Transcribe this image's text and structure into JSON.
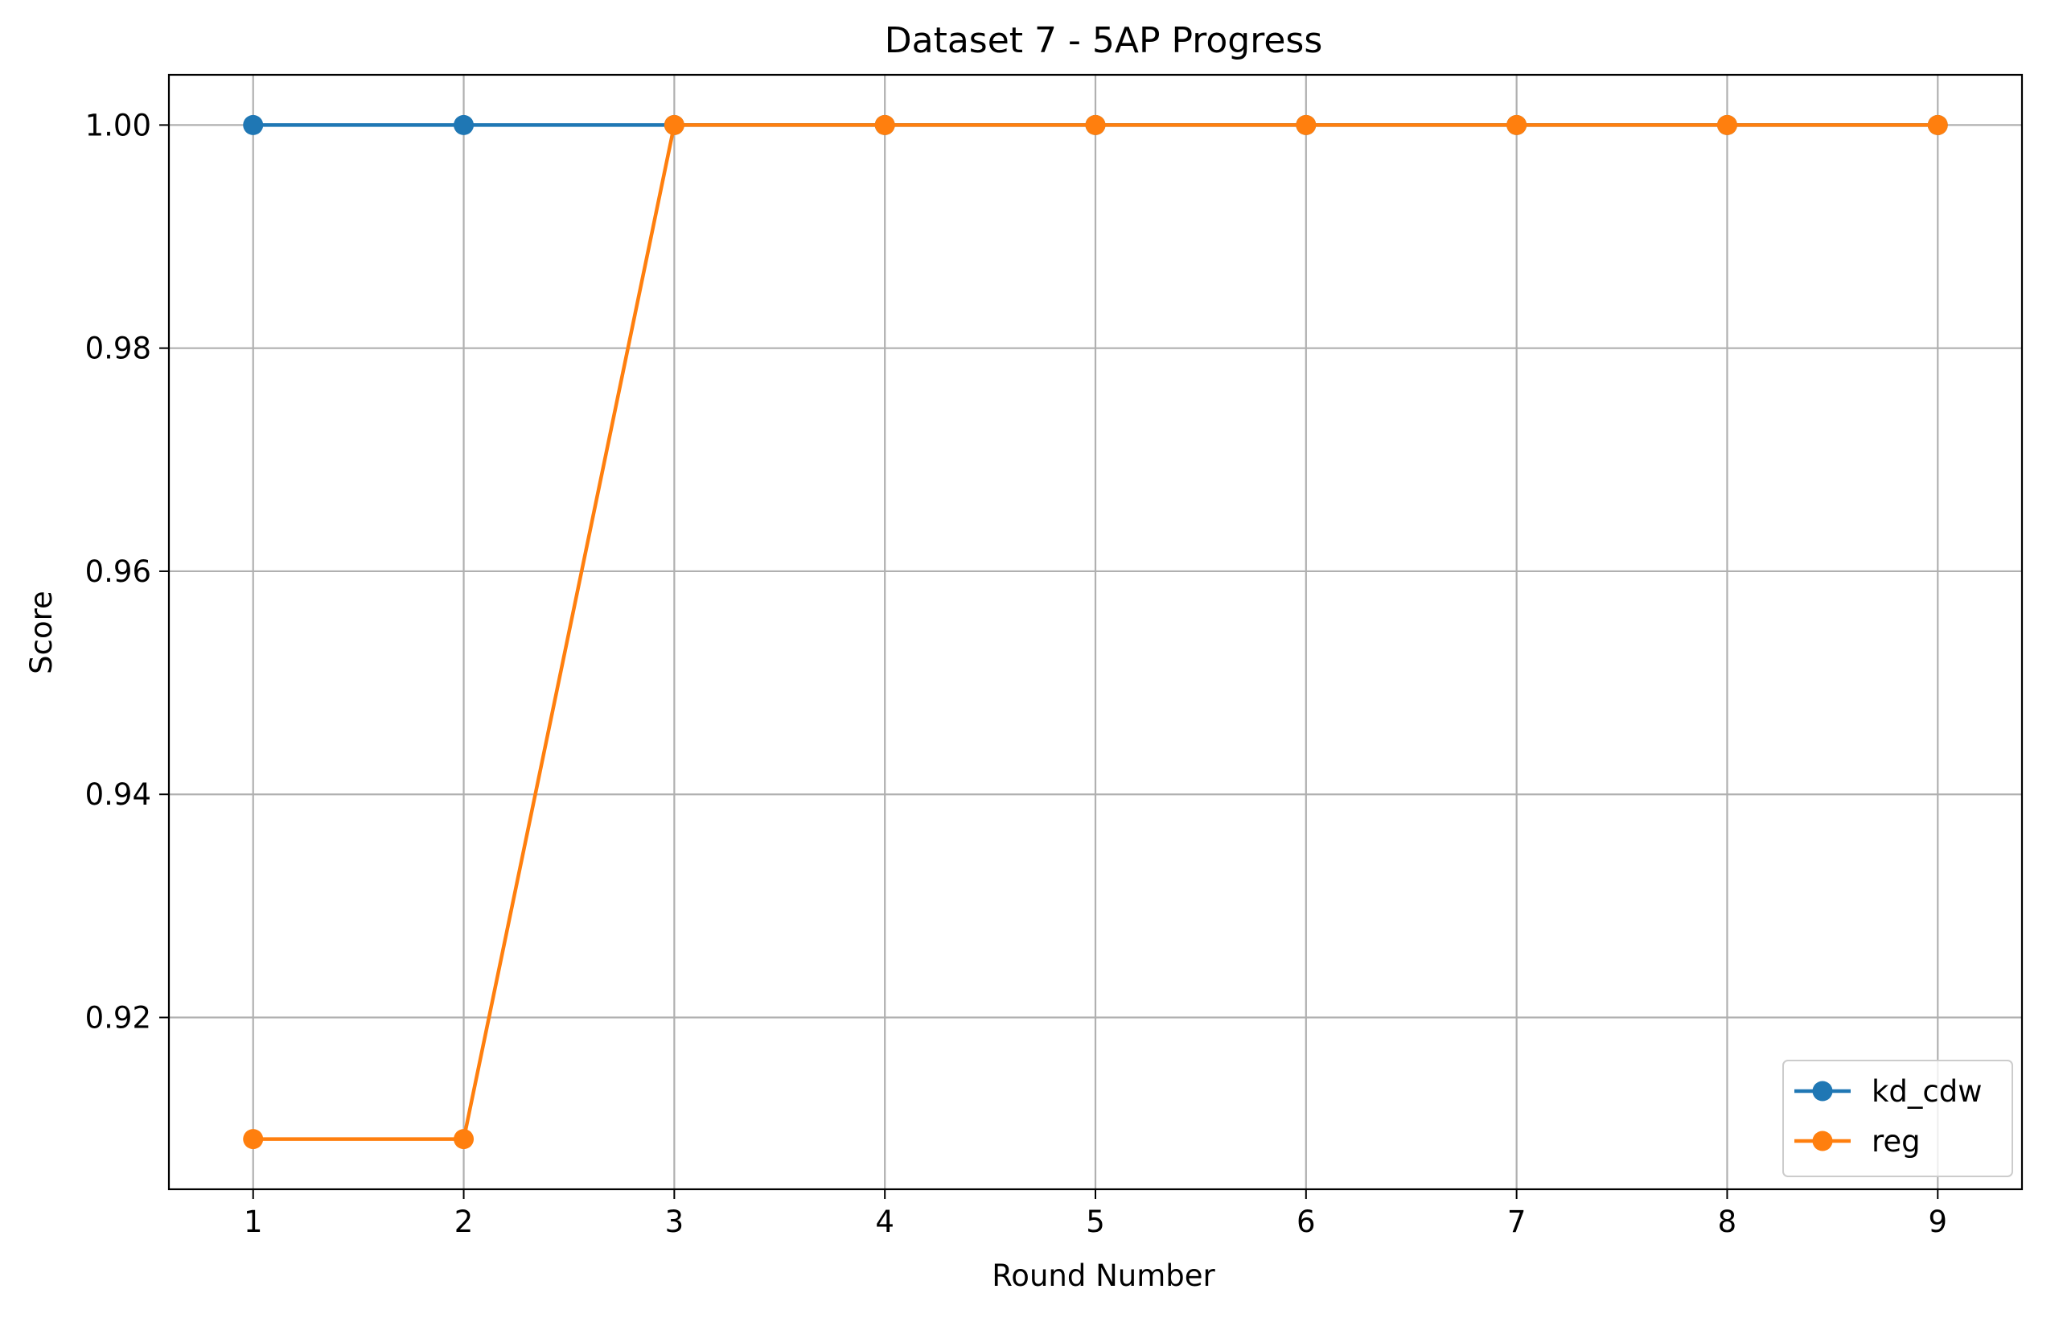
{
  "chart_data": {
    "type": "line",
    "title": "Dataset 7 - 5AP Progress",
    "xlabel": "Round Number",
    "ylabel": "Score",
    "x": [
      1,
      2,
      3,
      4,
      5,
      6,
      7,
      8,
      9
    ],
    "xlim": [
      0.6,
      9.4
    ],
    "ylim": [
      0.9046,
      1.0045
    ],
    "xticks": [
      1,
      2,
      3,
      4,
      5,
      6,
      7,
      8,
      9
    ],
    "xtick_labels": [
      "1",
      "2",
      "3",
      "4",
      "5",
      "6",
      "7",
      "8",
      "9"
    ],
    "yticks": [
      0.92,
      0.94,
      0.96,
      0.98,
      1.0
    ],
    "ytick_labels": [
      "0.92",
      "0.94",
      "0.96",
      "0.98",
      "1.00"
    ],
    "grid": true,
    "legend_position": "lower-right",
    "series": [
      {
        "name": "kd_cdw",
        "color": "#1f77b4",
        "marker": "circle",
        "values": [
          1.0,
          1.0,
          1.0,
          1.0,
          1.0,
          1.0,
          1.0,
          1.0,
          1.0
        ]
      },
      {
        "name": "reg",
        "color": "#ff7f0e",
        "marker": "circle",
        "values": [
          0.9091,
          0.9091,
          1.0,
          1.0,
          1.0,
          1.0,
          1.0,
          1.0,
          1.0
        ]
      }
    ]
  }
}
